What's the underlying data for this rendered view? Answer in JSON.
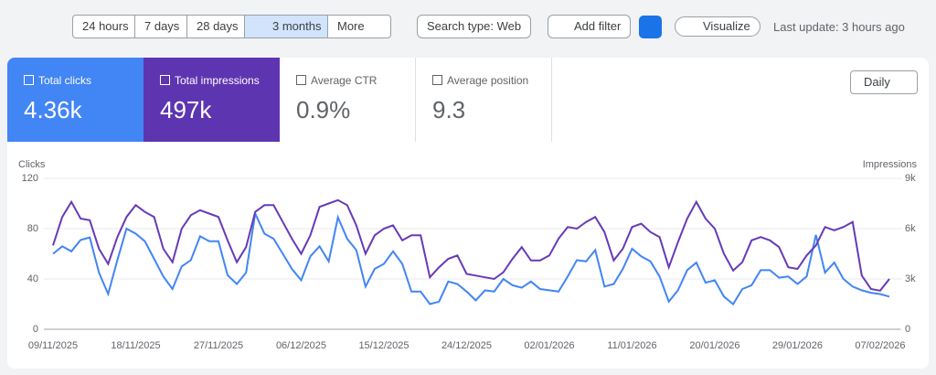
{
  "toolbar": {
    "ranges": [
      "24 hours",
      "7 days",
      "28 days",
      "3 months",
      "More"
    ],
    "search_type": "Search type: Web",
    "add_filter": "Add filter",
    "visualize": "Visualize",
    "last_update": "Last update: 3 hours ago"
  },
  "cards": [
    {
      "label": "Total clicks",
      "value": "4.36k"
    },
    {
      "label": "Total impressions",
      "value": "497k"
    },
    {
      "label": "Average CTR",
      "value": "0.9%"
    },
    {
      "label": "Average position",
      "value": "9.3"
    }
  ],
  "granularity": "Daily",
  "chart_data": {
    "type": "line",
    "y_label": "Clicks",
    "y2_label": "Impressions",
    "categories": [
      "09/11/2025",
      null,
      null,
      null,
      null,
      null,
      null,
      null,
      null,
      "18/11/2025",
      null,
      null,
      null,
      null,
      null,
      null,
      null,
      null,
      "27/11/2025",
      null,
      null,
      null,
      null,
      null,
      null,
      null,
      null,
      "06/12/2025",
      null,
      null,
      null,
      null,
      null,
      null,
      null,
      null,
      "15/12/2025",
      null,
      null,
      null,
      null,
      null,
      null,
      null,
      null,
      "24/12/2025",
      null,
      null,
      null,
      null,
      null,
      null,
      null,
      null,
      "02/01/2026",
      null,
      null,
      null,
      null,
      null,
      null,
      null,
      null,
      "11/01/2026",
      null,
      null,
      null,
      null,
      null,
      null,
      null,
      null,
      "20/01/2026",
      null,
      null,
      null,
      null,
      null,
      null,
      null,
      null,
      "29/01/2026",
      null,
      null,
      null,
      null,
      null,
      null,
      null,
      null,
      "07/02/2026",
      null
    ],
    "series": [
      {
        "color": "#4285f4",
        "values": [
          60,
          66,
          62,
          71,
          73,
          45,
          28,
          55,
          80,
          76,
          70,
          56,
          42,
          32,
          50,
          55,
          74,
          70,
          70,
          43,
          36,
          45,
          92,
          76,
          72,
          60,
          48,
          39,
          58,
          66,
          54,
          89,
          72,
          63,
          34,
          48,
          52,
          62,
          52,
          30,
          30,
          20,
          22,
          38,
          36,
          30,
          23,
          31,
          30,
          40,
          35,
          33,
          38,
          32,
          31,
          30,
          42,
          55,
          54,
          63,
          34,
          36,
          48,
          64,
          58,
          54,
          42,
          22,
          31,
          47,
          53,
          37,
          39,
          26,
          20,
          32,
          35,
          47,
          47,
          41,
          42,
          36,
          42,
          75,
          45,
          53,
          40,
          34,
          31,
          29,
          28,
          26
        ]
      },
      {
        "color": "#673ab7",
        "axis": "y2",
        "values": [
          5000,
          6700,
          7600,
          6600,
          6500,
          4800,
          3900,
          5500,
          6700,
          7400,
          7000,
          6700,
          4800,
          4000,
          6000,
          6800,
          7100,
          6900,
          6700,
          5300,
          4000,
          4900,
          7000,
          7400,
          7400,
          6400,
          5400,
          4500,
          5600,
          7300,
          7500,
          7700,
          7400,
          6200,
          4500,
          5600,
          6000,
          6200,
          5300,
          5600,
          5600,
          3100,
          3700,
          4200,
          4400,
          3300,
          3200,
          3100,
          3000,
          3400,
          4200,
          4900,
          4100,
          4100,
          4400,
          5400,
          6100,
          6000,
          6400,
          6700,
          5800,
          4100,
          4800,
          6100,
          6300,
          5800,
          5500,
          3700,
          5200,
          6600,
          7600,
          6600,
          6000,
          4500,
          3500,
          4000,
          5300,
          5500,
          5300,
          4900,
          3700,
          3600,
          4400,
          5000,
          6100,
          5900,
          6100,
          6400,
          3200,
          2400,
          2300,
          3000
        ]
      }
    ],
    "ylim": [
      0,
      120
    ],
    "yticks": [
      0,
      40,
      80,
      120
    ],
    "y2lim": [
      0,
      9000
    ],
    "y2ticks": [
      0,
      {
        "value": 3000,
        "label": "3k"
      },
      {
        "value": 6000,
        "label": "6k"
      },
      {
        "value": 9000,
        "label": "9k"
      }
    ],
    "grid": true
  }
}
